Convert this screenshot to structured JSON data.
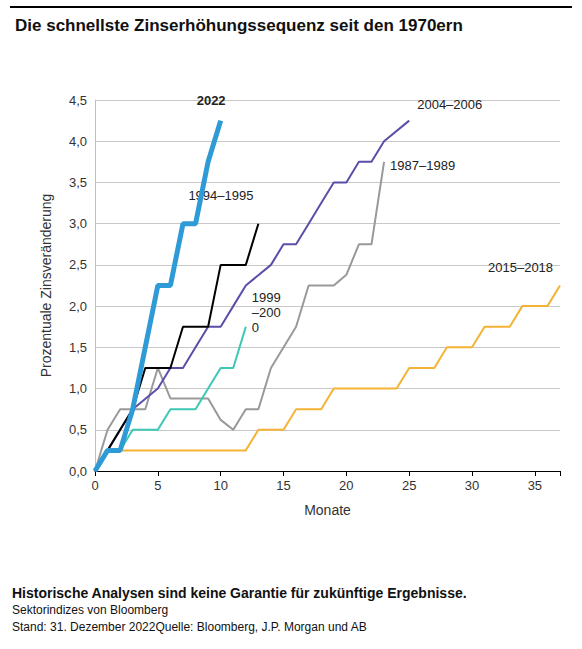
{
  "chart_data": {
    "type": "line",
    "title": "Die schnellste Zinserhöhungssequenz seit den 1970ern",
    "x_label": "Monate",
    "y_label": "Prozentuale Zinsveränderung",
    "xlim": [
      0,
      37
    ],
    "xticks": [
      0,
      5,
      10,
      15,
      20,
      25,
      30,
      35
    ],
    "ylim": [
      0,
      4.5
    ],
    "yticks": [
      {
        "value": 0,
        "label": "0,0"
      },
      {
        "value": 0.5,
        "label": "0,5"
      },
      {
        "value": 1,
        "label": "1,0"
      },
      {
        "value": 1.5,
        "label": "1,5"
      },
      {
        "value": 2,
        "label": "2,0"
      },
      {
        "value": 2.5,
        "label": "2,5"
      },
      {
        "value": 3,
        "label": "3,0"
      },
      {
        "value": 3.5,
        "label": "3,5"
      },
      {
        "value": 4,
        "label": "4,0"
      },
      {
        "value": 4.5,
        "label": "4,5"
      }
    ],
    "grid": true,
    "series": [
      {
        "name": "2022",
        "color": "#2f9bd6",
        "x": [
          0,
          1,
          2,
          3,
          4,
          5,
          6,
          7,
          8,
          9,
          10
        ],
        "values": [
          0,
          0.25,
          0.25,
          0.75,
          1.5,
          2.25,
          2.25,
          3.0,
          3.0,
          3.75,
          4.25
        ]
      },
      {
        "name": "1994–1995",
        "color": "#000000",
        "x": [
          0,
          1,
          2,
          3,
          4,
          6,
          7,
          9,
          10,
          12,
          13
        ],
        "values": [
          0,
          0.25,
          0.5,
          0.75,
          1.25,
          1.25,
          1.75,
          1.75,
          2.5,
          2.5,
          3.0
        ]
      },
      {
        "name": "1999–2000",
        "color": "#3cc8b4",
        "x": [
          0,
          1,
          2,
          3,
          5,
          6,
          8,
          9,
          10,
          11,
          12
        ],
        "values": [
          0,
          0.25,
          0.25,
          0.5,
          0.5,
          0.75,
          0.75,
          1.0,
          1.25,
          1.25,
          1.75
        ]
      },
      {
        "name": "2004–2006",
        "color": "#5a4fa8",
        "x": [
          0,
          1,
          2,
          3,
          5,
          6,
          7,
          8,
          9,
          10,
          11,
          12,
          14,
          15,
          16,
          17,
          18,
          19,
          20,
          21,
          22,
          23,
          25
        ],
        "values": [
          0,
          0.25,
          0.5,
          0.75,
          1.0,
          1.25,
          1.25,
          1.5,
          1.75,
          1.75,
          2.0,
          2.25,
          2.5,
          2.75,
          2.75,
          3.0,
          3.25,
          3.5,
          3.5,
          3.75,
          3.75,
          4.0,
          4.25
        ]
      },
      {
        "name": "1987–1989",
        "color": "#999999",
        "x": [
          0,
          1,
          2,
          4,
          5,
          6,
          7,
          8,
          9,
          10,
          11,
          12,
          13,
          14,
          16,
          17,
          19,
          20,
          21,
          22,
          23
        ],
        "values": [
          0,
          0.5,
          0.75,
          0.75,
          1.25,
          0.88,
          0.88,
          0.88,
          0.88,
          0.62,
          0.5,
          0.75,
          0.75,
          1.25,
          1.75,
          2.25,
          2.25,
          2.38,
          2.75,
          2.75,
          3.75
        ]
      },
      {
        "name": "2015–2018",
        "color": "#f5b335",
        "x": [
          0,
          1,
          12,
          13,
          15,
          16,
          18,
          19,
          24,
          25,
          27,
          28,
          30,
          31,
          33,
          34,
          36,
          37
        ],
        "values": [
          0,
          0.25,
          0.25,
          0.5,
          0.5,
          0.75,
          0.75,
          1.0,
          1.0,
          1.25,
          1.25,
          1.5,
          1.5,
          1.75,
          1.75,
          2.0,
          2.0,
          2.25
        ]
      }
    ],
    "notes": [
      "Historische Analysen sind keine Garantie für zukünftige Ergebnisse.",
      "Sektorindizes von Bloomberg",
      "Stand: 31. Dezember 2022Quelle: Bloomberg, J.P. Morgan und AB"
    ]
  }
}
